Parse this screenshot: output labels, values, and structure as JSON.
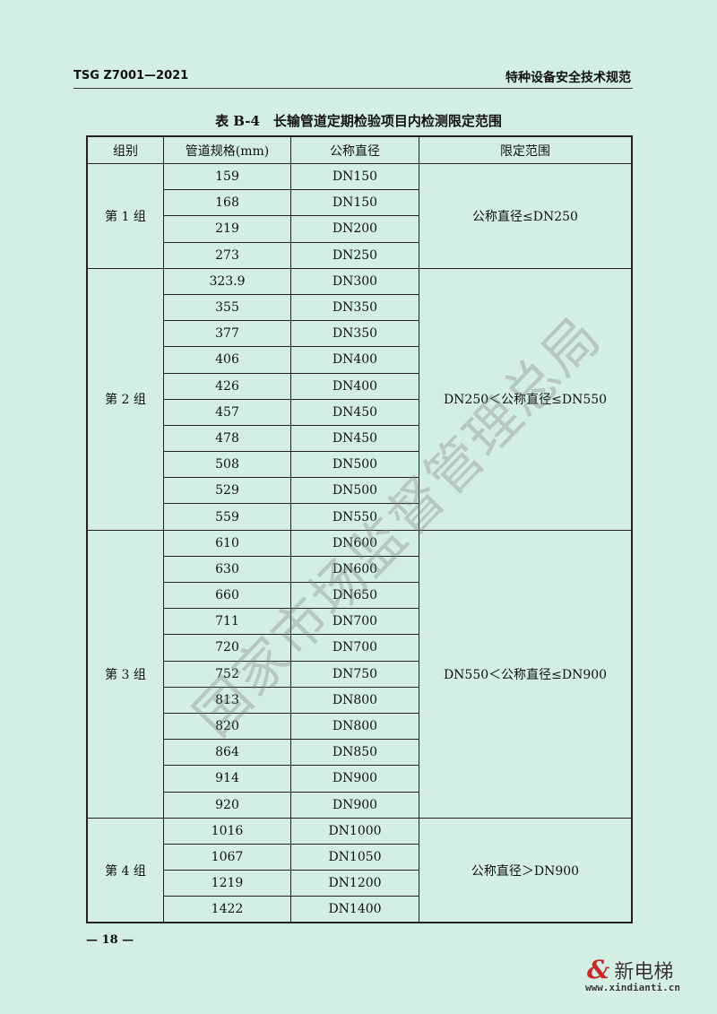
{
  "header": {
    "left": "TSG Z7001—2021",
    "right": "特种设备安全技术规范"
  },
  "title": "表 B-4　长输管道定期检验项目内检测限定范围",
  "table": {
    "columns": [
      "组别",
      "管道规格(mm)",
      "公称直径",
      "限定范围"
    ],
    "groups": [
      {
        "name": "第 1 组",
        "range": "公称直径≤DN250",
        "rows": [
          [
            "159",
            "DN150"
          ],
          [
            "168",
            "DN150"
          ],
          [
            "219",
            "DN200"
          ],
          [
            "273",
            "DN250"
          ]
        ]
      },
      {
        "name": "第 2 组",
        "range": "DN250＜公称直径≤DN550",
        "rows": [
          [
            "323.9",
            "DN300"
          ],
          [
            "355",
            "DN350"
          ],
          [
            "377",
            "DN350"
          ],
          [
            "406",
            "DN400"
          ],
          [
            "426",
            "DN400"
          ],
          [
            "457",
            "DN450"
          ],
          [
            "478",
            "DN450"
          ],
          [
            "508",
            "DN500"
          ],
          [
            "529",
            "DN500"
          ],
          [
            "559",
            "DN550"
          ]
        ]
      },
      {
        "name": "第 3 组",
        "range": "DN550＜公称直径≤DN900",
        "rows": [
          [
            "610",
            "DN600"
          ],
          [
            "630",
            "DN600"
          ],
          [
            "660",
            "DN650"
          ],
          [
            "711",
            "DN700"
          ],
          [
            "720",
            "DN700"
          ],
          [
            "752",
            "DN750"
          ],
          [
            "813",
            "DN800"
          ],
          [
            "820",
            "DN800"
          ],
          [
            "864",
            "DN850"
          ],
          [
            "914",
            "DN900"
          ],
          [
            "920",
            "DN900"
          ]
        ]
      },
      {
        "name": "第 4 组",
        "range": "公称直径＞DN900",
        "rows": [
          [
            "1016",
            "DN1000"
          ],
          [
            "1067",
            "DN1050"
          ],
          [
            "1219",
            "DN1200"
          ],
          [
            "1422",
            "DN1400"
          ]
        ]
      }
    ]
  },
  "watermark": "国家市场监督管理总局",
  "page_number": "— 18 —",
  "logo": {
    "mark": "&",
    "name": "新电梯",
    "url": "www.xindianti.cn",
    "accent": "#c62828"
  }
}
